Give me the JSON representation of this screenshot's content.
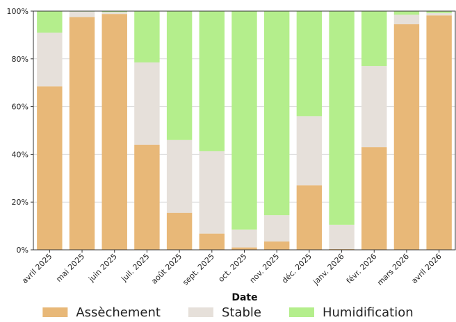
{
  "chart_data": {
    "type": "bar",
    "stacked": true,
    "percent": true,
    "xlabel": "Date",
    "ylabel": "",
    "ylim": [
      0,
      100
    ],
    "yticks": [
      "0%",
      "20%",
      "40%",
      "60%",
      "80%",
      "100%"
    ],
    "categories": [
      "avril 2025",
      "mai 2025",
      "juin 2025",
      "juil. 2025",
      "août 2025",
      "sept. 2025",
      "oct. 2025",
      "nov. 2025",
      "déc. 2025",
      "janv. 2026",
      "févr. 2026",
      "mars 2026",
      "avril 2026"
    ],
    "series": [
      {
        "name": "Assèchement",
        "color": "#e8b878",
        "values": [
          68.5,
          97.5,
          98.8,
          44.0,
          15.5,
          6.8,
          1.0,
          3.5,
          27.0,
          0.3,
          43.0,
          94.5,
          98.2
        ]
      },
      {
        "name": "Stable",
        "color": "#e6e0da",
        "values": [
          22.5,
          2.3,
          0.8,
          34.5,
          30.5,
          34.5,
          7.5,
          11.0,
          29.0,
          10.2,
          34.0,
          4.0,
          1.0
        ]
      },
      {
        "name": "Humidification",
        "color": "#b4ee8c",
        "values": [
          9.0,
          0.2,
          0.4,
          21.5,
          54.0,
          58.7,
          91.5,
          85.5,
          44.0,
          89.5,
          23.0,
          1.5,
          0.8
        ]
      }
    ],
    "grid": "horizontal",
    "legend_position": "bottom"
  }
}
